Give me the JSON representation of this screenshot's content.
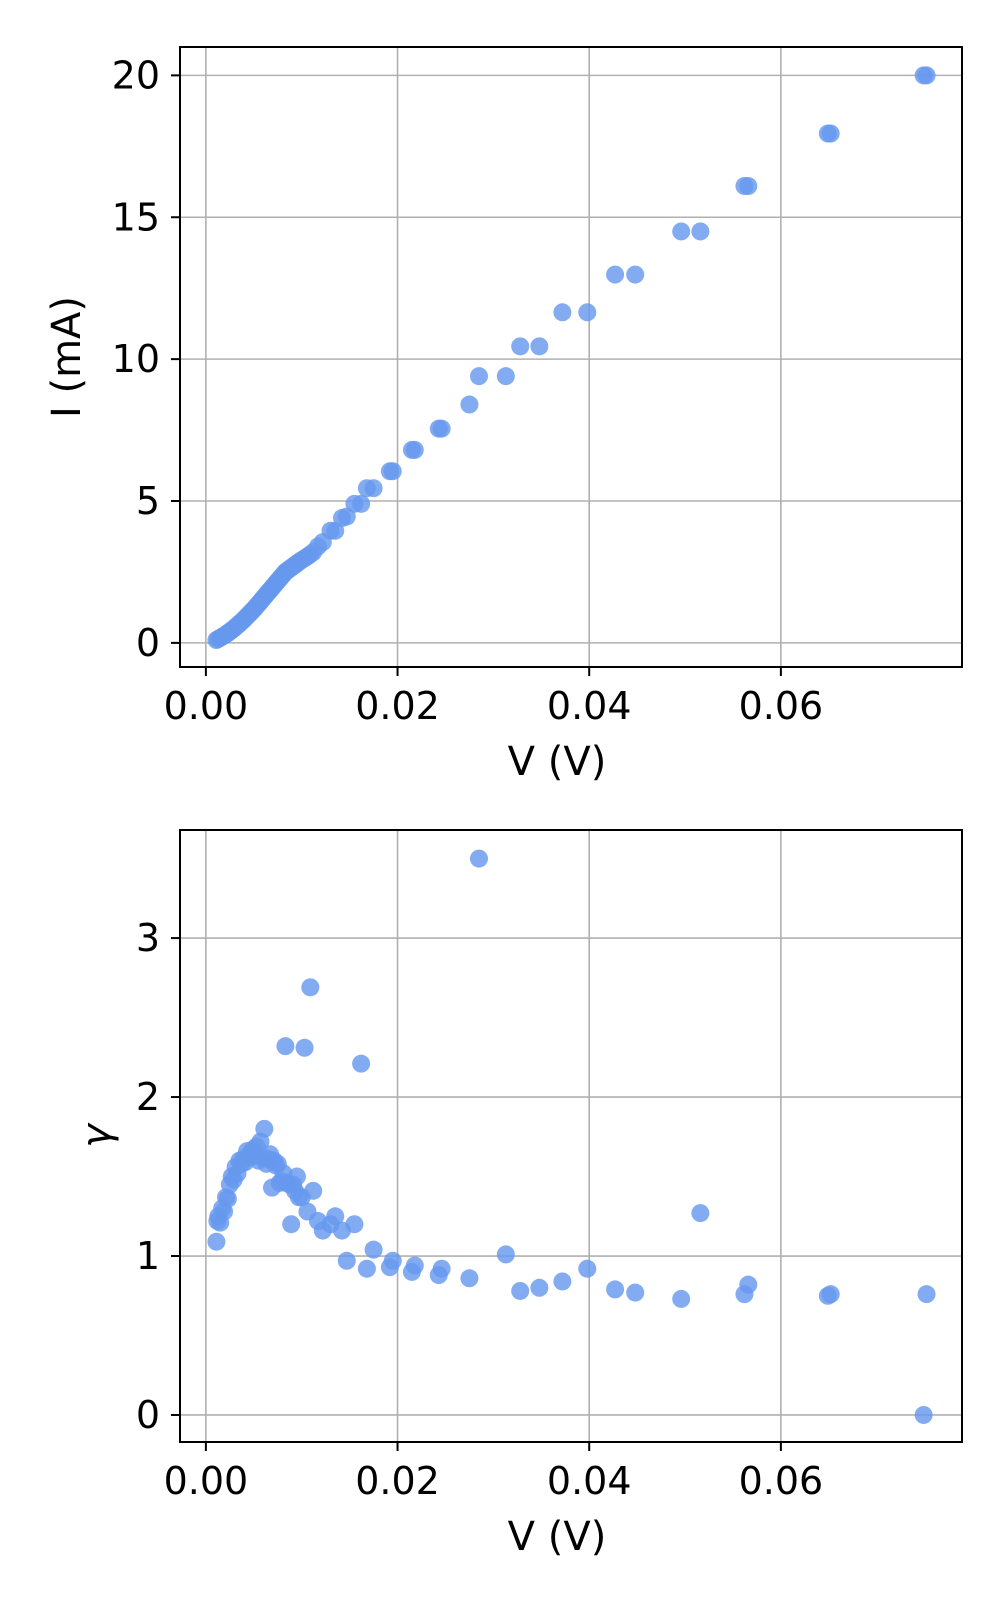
{
  "chart_data": [
    {
      "type": "scatter",
      "title": "",
      "xlabel": "V (V)",
      "ylabel": "I (mA)",
      "xlim": [
        -0.0027,
        0.0789
      ],
      "ylim": [
        -0.85,
        21.0
      ],
      "xticks": [
        0.0,
        0.02,
        0.04,
        0.06
      ],
      "xtick_labels": [
        "0.00",
        "0.02",
        "0.04",
        "0.06"
      ],
      "yticks": [
        0,
        5,
        10,
        15,
        20
      ],
      "ytick_labels": [
        "0",
        "5",
        "10",
        "15",
        "20"
      ],
      "grid": true,
      "color": "#6699ee",
      "series": [
        {
          "x": [
            0.0011,
            0.0013,
            0.0015,
            0.0017,
            0.0019,
            0.0021,
            0.0023,
            0.0025,
            0.0027,
            0.0029,
            0.0031,
            0.0033,
            0.0035,
            0.0037,
            0.0039,
            0.0041,
            0.0043,
            0.0045,
            0.0047,
            0.0049,
            0.0051,
            0.0053,
            0.0055,
            0.0057,
            0.0059,
            0.0061,
            0.0063,
            0.0065,
            0.0067,
            0.0069,
            0.0071,
            0.0073,
            0.0075,
            0.0077,
            0.0079,
            0.0081,
            0.0083,
            0.0085,
            0.0087,
            0.0089,
            0.0091,
            0.0093,
            0.0095,
            0.0097,
            0.01,
            0.0103,
            0.0106,
            0.0109,
            0.0112,
            0.0117,
            0.0122,
            0.013,
            0.0135,
            0.0142,
            0.0147,
            0.0155,
            0.0162,
            0.0168,
            0.0175,
            0.0192,
            0.0195,
            0.0215,
            0.0218,
            0.0243,
            0.0246,
            0.0275,
            0.0285,
            0.0313,
            0.0328,
            0.0348,
            0.0372,
            0.0398,
            0.0427,
            0.0448,
            0.0496,
            0.0516,
            0.0562,
            0.0566,
            0.0649,
            0.0652,
            0.0749,
            0.0752
          ],
          "y": [
            0.1,
            0.14,
            0.18,
            0.22,
            0.26,
            0.3,
            0.35,
            0.4,
            0.45,
            0.5,
            0.56,
            0.62,
            0.68,
            0.74,
            0.8,
            0.87,
            0.94,
            1.01,
            1.08,
            1.15,
            1.22,
            1.3,
            1.38,
            1.46,
            1.54,
            1.62,
            1.7,
            1.78,
            1.86,
            1.94,
            2.02,
            2.1,
            2.18,
            2.26,
            2.34,
            2.42,
            2.5,
            2.55,
            2.6,
            2.65,
            2.7,
            2.75,
            2.8,
            2.85,
            2.92,
            2.98,
            3.05,
            3.12,
            3.2,
            3.4,
            3.55,
            3.95,
            3.95,
            4.4,
            4.45,
            4.9,
            4.9,
            5.45,
            5.45,
            6.05,
            6.05,
            6.8,
            6.8,
            7.55,
            7.55,
            8.4,
            9.4,
            9.4,
            10.45,
            10.45,
            11.65,
            11.65,
            12.98,
            12.98,
            14.5,
            14.5,
            16.1,
            16.1,
            17.95,
            17.95,
            20.0,
            20.0
          ]
        }
      ]
    },
    {
      "type": "scatter",
      "title": "",
      "xlabel": "V (V)",
      "ylabel": "γ",
      "xlim": [
        -0.0027,
        0.0789
      ],
      "ylim": [
        -0.17,
        3.68
      ],
      "xticks": [
        0.0,
        0.02,
        0.04,
        0.06
      ],
      "xtick_labels": [
        "0.00",
        "0.02",
        "0.04",
        "0.06"
      ],
      "yticks": [
        0,
        1,
        2,
        3
      ],
      "ytick_labels": [
        "0",
        "1",
        "2",
        "3"
      ],
      "grid": true,
      "color": "#6699ee",
      "series": [
        {
          "x": [
            0.0011,
            0.0012,
            0.0013,
            0.0015,
            0.0017,
            0.0019,
            0.0021,
            0.0023,
            0.0025,
            0.0027,
            0.0029,
            0.0031,
            0.0033,
            0.0035,
            0.0037,
            0.0039,
            0.0041,
            0.0043,
            0.0045,
            0.0047,
            0.0049,
            0.0051,
            0.0053,
            0.0055,
            0.0057,
            0.0059,
            0.0061,
            0.0063,
            0.0065,
            0.0067,
            0.0069,
            0.0071,
            0.0073,
            0.0075,
            0.0077,
            0.0079,
            0.0081,
            0.0083,
            0.0085,
            0.0087,
            0.0089,
            0.0091,
            0.0093,
            0.0095,
            0.0097,
            0.01,
            0.0103,
            0.0106,
            0.0109,
            0.0112,
            0.0117,
            0.0122,
            0.013,
            0.0135,
            0.0142,
            0.0147,
            0.0155,
            0.0162,
            0.0168,
            0.0175,
            0.0192,
            0.0195,
            0.0215,
            0.0218,
            0.0243,
            0.0246,
            0.0275,
            0.0285,
            0.0313,
            0.0328,
            0.0348,
            0.0372,
            0.0398,
            0.0427,
            0.0448,
            0.0496,
            0.0516,
            0.0562,
            0.0566,
            0.0649,
            0.0652,
            0.0749,
            0.0752
          ],
          "y": [
            1.09,
            1.22,
            1.25,
            1.21,
            1.3,
            1.28,
            1.37,
            1.36,
            1.45,
            1.5,
            1.48,
            1.56,
            1.52,
            1.6,
            1.58,
            1.61,
            1.59,
            1.66,
            1.62,
            1.65,
            1.67,
            1.63,
            1.69,
            1.6,
            1.72,
            1.62,
            1.8,
            1.58,
            1.61,
            1.64,
            1.43,
            1.6,
            1.57,
            1.58,
            1.46,
            1.47,
            1.52,
            2.32,
            1.46,
            1.45,
            1.2,
            1.45,
            1.41,
            1.5,
            1.37,
            1.37,
            2.31,
            1.28,
            2.69,
            1.41,
            1.22,
            1.16,
            1.2,
            1.25,
            1.16,
            0.97,
            1.2,
            2.21,
            0.92,
            1.04,
            0.93,
            0.97,
            0.9,
            0.94,
            0.88,
            0.92,
            0.86,
            3.5,
            1.01,
            0.78,
            0.8,
            0.84,
            0.92,
            0.79,
            0.77,
            0.73,
            1.27,
            0.76,
            0.82,
            0.75,
            0.76,
            0.0,
            0.76
          ]
        }
      ]
    }
  ]
}
